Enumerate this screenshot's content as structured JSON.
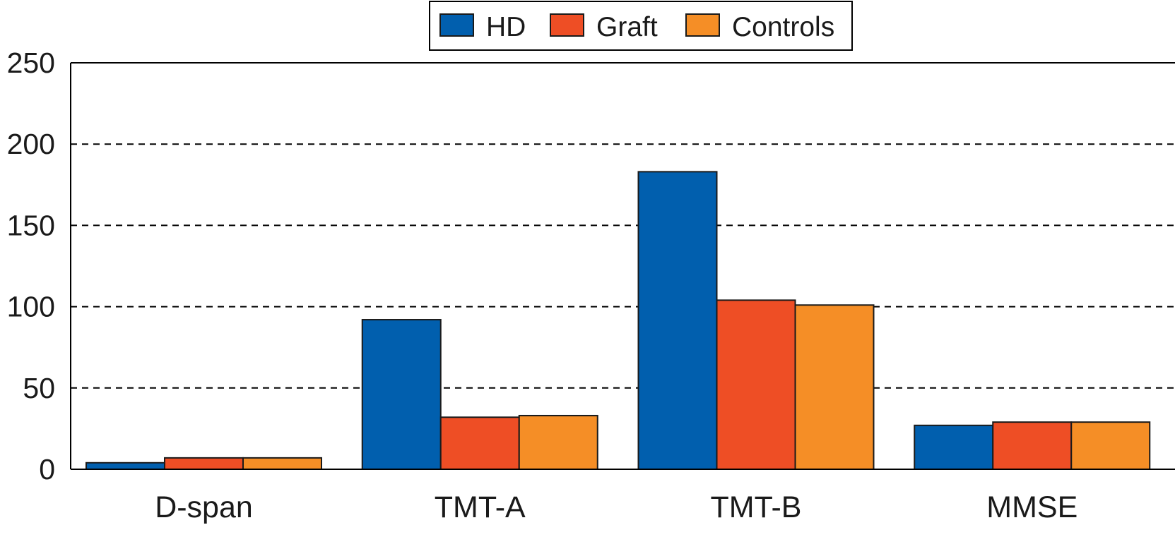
{
  "chart_data": {
    "type": "bar",
    "categories": [
      "D-span",
      "TMT-A",
      "TMT-B",
      "MMSE"
    ],
    "series": [
      {
        "name": "HD",
        "color": "#015fae",
        "values": [
          4,
          92,
          183,
          27
        ]
      },
      {
        "name": "Graft",
        "color": "#ee4e25",
        "values": [
          7,
          32,
          104,
          29
        ]
      },
      {
        "name": "Controls",
        "color": "#f58e26",
        "values": [
          7,
          33,
          101,
          29
        ]
      }
    ],
    "yticks": [
      0,
      50,
      100,
      150,
      200,
      250
    ],
    "ylim": [
      0,
      250
    ],
    "grid": true,
    "grid_style": "dashed",
    "legend_position": "top-center",
    "title": "",
    "xlabel": "",
    "ylabel": ""
  }
}
